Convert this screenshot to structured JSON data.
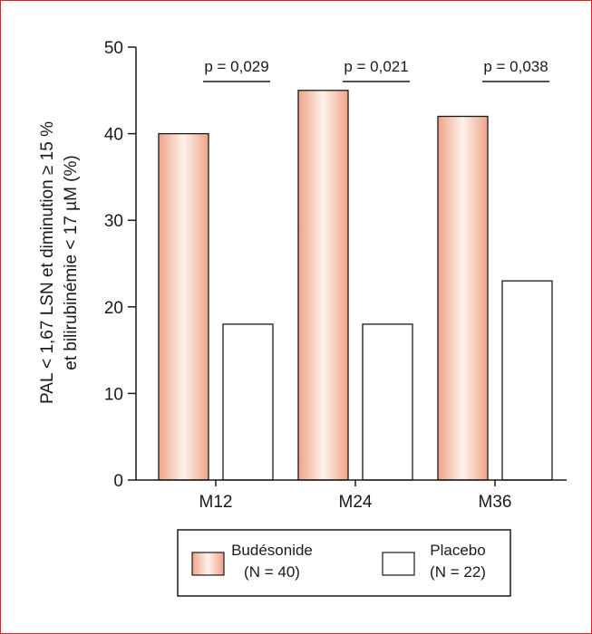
{
  "chart_data": {
    "type": "bar",
    "ylabel_line1": "PAL < 1,67 LSN et diminution ≥ 15 %",
    "ylabel_line2": "et bilirubinémie < 17 µM (%)",
    "ylim": [
      0,
      50
    ],
    "yticks": [
      "0",
      "10",
      "20",
      "30",
      "40",
      "50"
    ],
    "categories": [
      "M12",
      "M24",
      "M36"
    ],
    "series": [
      {
        "name": "Budésonide",
        "n_label": "(N = 40)",
        "values": [
          40,
          45,
          42
        ]
      },
      {
        "name": "Placebo",
        "n_label": "(N = 22)",
        "values": [
          18,
          18,
          23
        ]
      }
    ],
    "pvalues": [
      "p = 0,029",
      "p = 0,021",
      "p = 0,038"
    ],
    "colors": {
      "budesonide_edge": "#f0a488",
      "budesonide_center": "#fdf2ec",
      "placebo": "#ffffff",
      "frame": "#e2201f"
    },
    "legend_position": "bottom",
    "grid": false
  }
}
